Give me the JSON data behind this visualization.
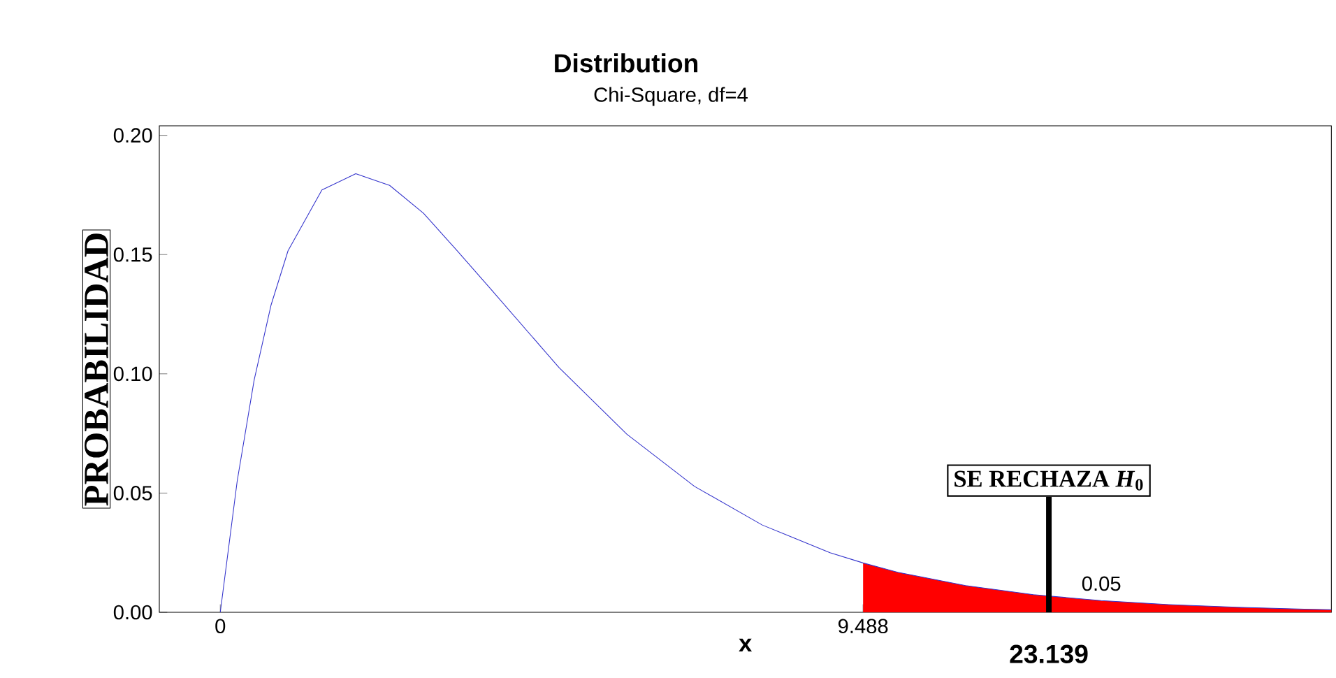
{
  "chart_data": {
    "type": "line",
    "title": "Distribution",
    "subtitle": "Chi-Square, df=4",
    "xlabel": "x",
    "ylabel": "PROBABILIDAD",
    "xlim": [
      -0.9,
      16.4
    ],
    "ylim": [
      0,
      0.204
    ],
    "xticks": [
      0,
      9.488
    ],
    "yticks": [
      {
        "value": 0,
        "label": "0.00"
      },
      {
        "value": 0.05,
        "label": "0.05"
      },
      {
        "value": 0.1,
        "label": "0.10"
      },
      {
        "value": 0.15,
        "label": "0.15"
      },
      {
        "value": 0.2,
        "label": "0.20"
      }
    ],
    "series": [
      {
        "type": "area",
        "color": "#ff0000",
        "x": [
          9.488,
          10,
          11,
          12,
          13,
          14,
          15,
          16,
          16.4
        ],
        "values": [
          0.0207,
          0.0168,
          0.0112,
          0.0074,
          0.0049,
          0.0032,
          0.0021,
          0.0013,
          0.0011
        ]
      },
      {
        "color": "#3333cc",
        "x": [
          0,
          0.25,
          0.5,
          0.75,
          1,
          1.5,
          2,
          2.5,
          3,
          3.5,
          4,
          5,
          6,
          7,
          8,
          9,
          9.488,
          10,
          11,
          12,
          13,
          14,
          15,
          16,
          16.4
        ],
        "values": [
          0,
          0.0551,
          0.0974,
          0.1289,
          0.1516,
          0.1771,
          0.1839,
          0.179,
          0.1673,
          0.1515,
          0.1353,
          0.1026,
          0.0747,
          0.0528,
          0.0366,
          0.025,
          0.0207,
          0.0168,
          0.0112,
          0.0074,
          0.0049,
          0.0032,
          0.0021,
          0.0013,
          0.0011
        ]
      }
    ],
    "annotations": [
      {
        "text": "SE RECHAZA *H*$_{0}$",
        "x": 12.23,
        "y": 0
      },
      {
        "text": "23.139",
        "x": 12.23,
        "y": 0
      },
      "0.05"
    ],
    "grid": false,
    "marker": "none",
    "line_style": "solid"
  }
}
